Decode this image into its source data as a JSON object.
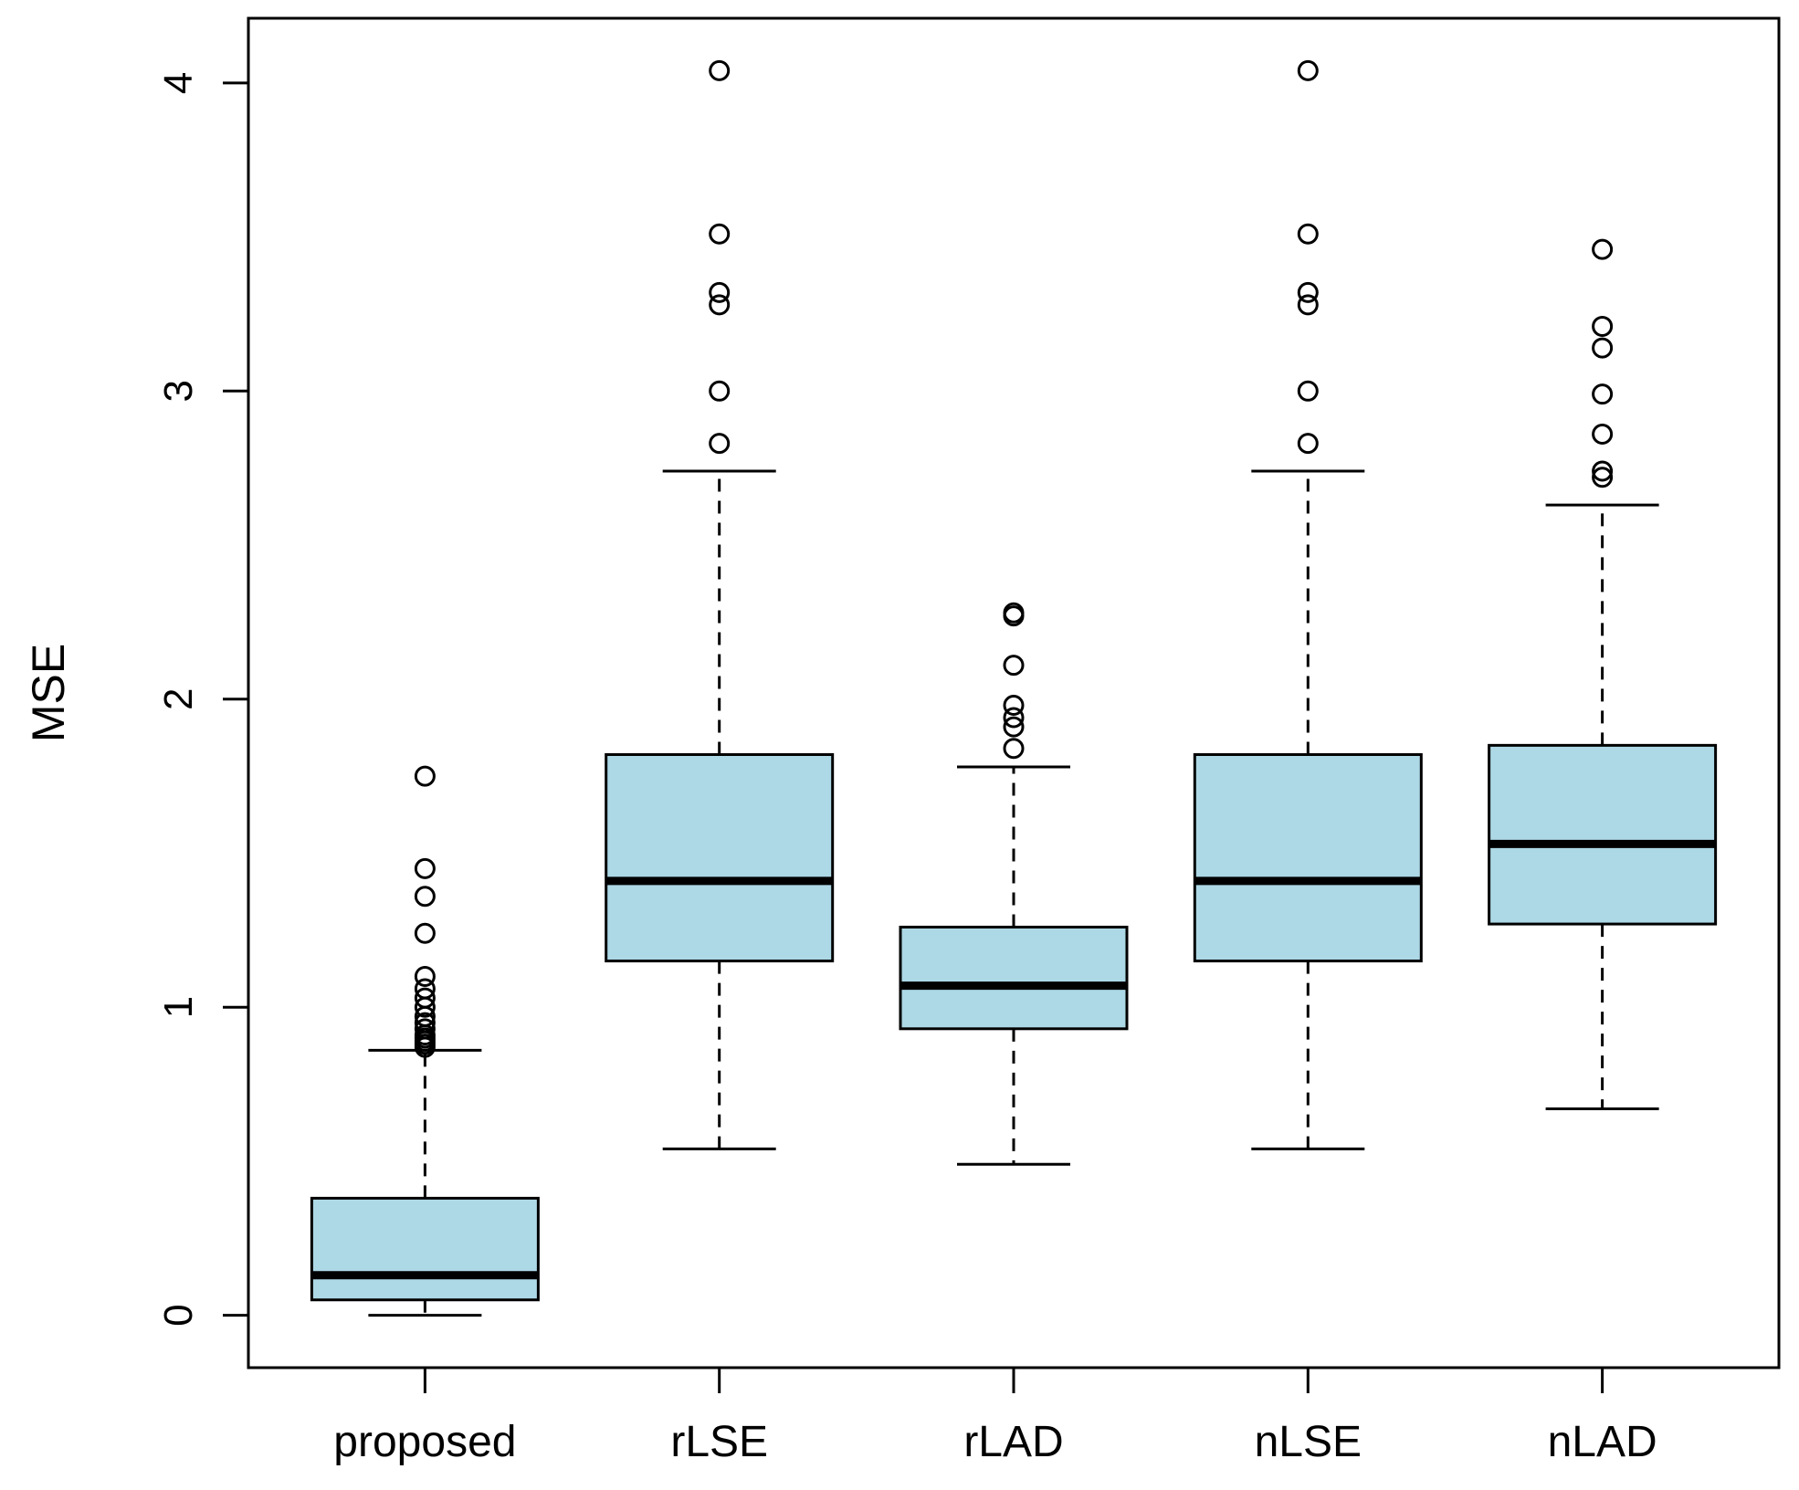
{
  "chart_data": {
    "type": "boxplot",
    "title": "",
    "xlabel": "",
    "ylabel": "MSE",
    "ylim": [
      -0.17,
      4.21
    ],
    "yticks": [
      "0",
      "1",
      "2",
      "3",
      "4"
    ],
    "categories": [
      "proposed",
      "rLSE",
      "rLAD",
      "nLSE",
      "nLAD"
    ],
    "box_color": "#add8e6",
    "boxes": [
      {
        "name": "proposed",
        "whisker_low": 0.0,
        "q1": 0.05,
        "median": 0.13,
        "q3": 0.38,
        "whisker_high": 0.86,
        "outliers": [
          1.75,
          1.45,
          1.36,
          1.24,
          1.1,
          1.06,
          1.03,
          1.0,
          0.97,
          0.95,
          0.93,
          0.91,
          0.9,
          0.89,
          0.88,
          0.87
        ]
      },
      {
        "name": "rLSE",
        "whisker_low": 0.54,
        "q1": 1.15,
        "median": 1.41,
        "q3": 1.82,
        "whisker_high": 2.74,
        "outliers": [
          4.04,
          3.51,
          3.32,
          3.28,
          3.0,
          2.83
        ]
      },
      {
        "name": "rLAD",
        "whisker_low": 0.49,
        "q1": 0.93,
        "median": 1.07,
        "q3": 1.26,
        "whisker_high": 1.78,
        "outliers": [
          2.28,
          2.27,
          2.11,
          1.98,
          1.94,
          1.91,
          1.84
        ]
      },
      {
        "name": "nLSE",
        "whisker_low": 0.54,
        "q1": 1.15,
        "median": 1.41,
        "q3": 1.82,
        "whisker_high": 2.74,
        "outliers": [
          4.04,
          3.51,
          3.32,
          3.28,
          3.0,
          2.83
        ]
      },
      {
        "name": "nLAD",
        "whisker_low": 0.67,
        "q1": 1.27,
        "median": 1.53,
        "q3": 1.85,
        "whisker_high": 2.63,
        "outliers": [
          3.46,
          3.21,
          3.14,
          2.99,
          2.86,
          2.74,
          2.72
        ]
      }
    ]
  }
}
